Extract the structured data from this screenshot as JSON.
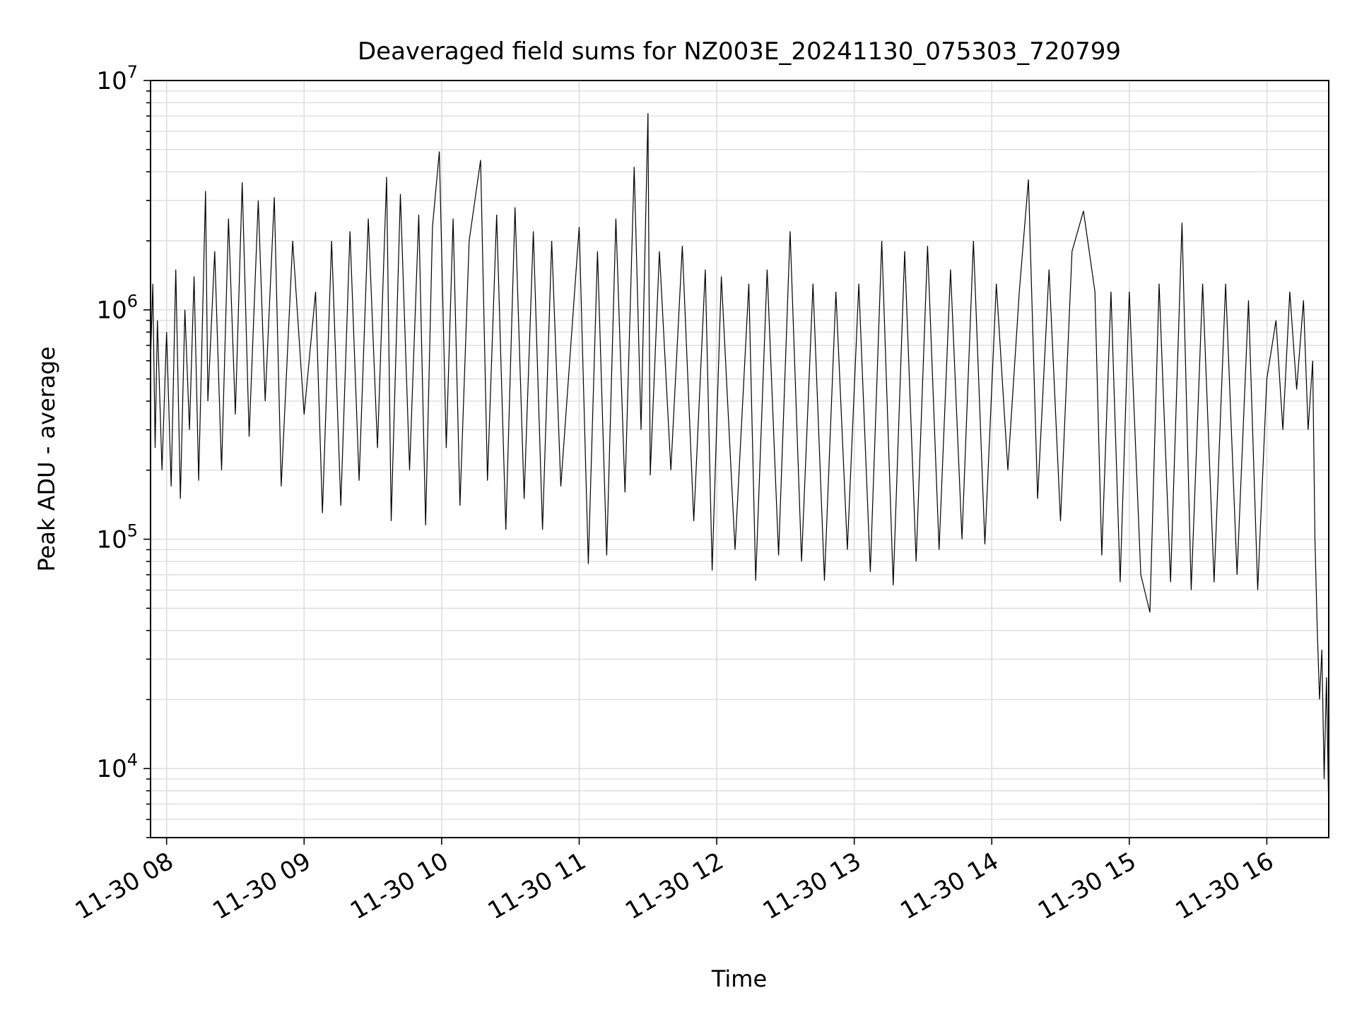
{
  "chart_data": {
    "type": "line",
    "title": "Deaveraged field sums for NZ003E_20241130_075303_720799",
    "xlabel": "Time",
    "ylabel": "Peak ADU - average",
    "y_scale": "log",
    "ylim": [
      5000,
      10000000
    ],
    "xlim": [
      "2024-11-30 07:53",
      "2024-11-30 16:27"
    ],
    "grid": true,
    "legend": "none",
    "line_color": "#000000",
    "x_ticks": [
      {
        "t": "2024-11-30 08:00",
        "label": "11-30 08"
      },
      {
        "t": "2024-11-30 09:00",
        "label": "11-30 09"
      },
      {
        "t": "2024-11-30 10:00",
        "label": "11-30 10"
      },
      {
        "t": "2024-11-30 11:00",
        "label": "11-30 11"
      },
      {
        "t": "2024-11-30 12:00",
        "label": "11-30 12"
      },
      {
        "t": "2024-11-30 13:00",
        "label": "11-30 13"
      },
      {
        "t": "2024-11-30 14:00",
        "label": "11-30 14"
      },
      {
        "t": "2024-11-30 15:00",
        "label": "11-30 15"
      },
      {
        "t": "2024-11-30 16:00",
        "label": "11-30 16"
      }
    ],
    "y_ticks": [
      {
        "value": 10000,
        "base": "10",
        "exp": "4"
      },
      {
        "value": 100000,
        "base": "10",
        "exp": "5"
      },
      {
        "value": 1000000,
        "base": "10",
        "exp": "6"
      },
      {
        "value": 10000000,
        "base": "10",
        "exp": "7"
      }
    ],
    "series": [
      {
        "points": [
          [
            "2024-11-30 07:53",
            600000
          ],
          [
            "2024-11-30 07:54",
            1300000
          ],
          [
            "2024-11-30 07:55",
            250000
          ],
          [
            "2024-11-30 07:56",
            900000
          ],
          [
            "2024-11-30 07:58",
            200000
          ],
          [
            "2024-11-30 08:00",
            800000
          ],
          [
            "2024-11-30 08:02",
            170000
          ],
          [
            "2024-11-30 08:04",
            1500000
          ],
          [
            "2024-11-30 08:06",
            150000
          ],
          [
            "2024-11-30 08:08",
            1000000
          ],
          [
            "2024-11-30 08:10",
            300000
          ],
          [
            "2024-11-30 08:12",
            1400000
          ],
          [
            "2024-11-30 08:14",
            180000
          ],
          [
            "2024-11-30 08:17",
            3300000
          ],
          [
            "2024-11-30 08:18",
            400000
          ],
          [
            "2024-11-30 08:21",
            1800000
          ],
          [
            "2024-11-30 08:24",
            200000
          ],
          [
            "2024-11-30 08:27",
            2500000
          ],
          [
            "2024-11-30 08:30",
            350000
          ],
          [
            "2024-11-30 08:33",
            3600000
          ],
          [
            "2024-11-30 08:36",
            280000
          ],
          [
            "2024-11-30 08:40",
            3000000
          ],
          [
            "2024-11-30 08:43",
            400000
          ],
          [
            "2024-11-30 08:47",
            3100000
          ],
          [
            "2024-11-30 08:50",
            170000
          ],
          [
            "2024-11-30 08:55",
            2000000
          ],
          [
            "2024-11-30 09:00",
            350000
          ],
          [
            "2024-11-30 09:05",
            1200000
          ],
          [
            "2024-11-30 09:08",
            130000
          ],
          [
            "2024-11-30 09:12",
            2000000
          ],
          [
            "2024-11-30 09:16",
            140000
          ],
          [
            "2024-11-30 09:20",
            2200000
          ],
          [
            "2024-11-30 09:24",
            180000
          ],
          [
            "2024-11-30 09:28",
            2500000
          ],
          [
            "2024-11-30 09:32",
            250000
          ],
          [
            "2024-11-30 09:36",
            3800000
          ],
          [
            "2024-11-30 09:38",
            120000
          ],
          [
            "2024-11-30 09:42",
            3200000
          ],
          [
            "2024-11-30 09:46",
            200000
          ],
          [
            "2024-11-30 09:50",
            2600000
          ],
          [
            "2024-11-30 09:53",
            115000
          ],
          [
            "2024-11-30 09:56",
            2300000
          ],
          [
            "2024-11-30 09:59",
            4900000
          ],
          [
            "2024-11-30 10:02",
            250000
          ],
          [
            "2024-11-30 10:05",
            2500000
          ],
          [
            "2024-11-30 10:08",
            140000
          ],
          [
            "2024-11-30 10:12",
            2000000
          ],
          [
            "2024-11-30 10:17",
            4500000
          ],
          [
            "2024-11-30 10:20",
            180000
          ],
          [
            "2024-11-30 10:24",
            2600000
          ],
          [
            "2024-11-30 10:28",
            110000
          ],
          [
            "2024-11-30 10:32",
            2800000
          ],
          [
            "2024-11-30 10:36",
            150000
          ],
          [
            "2024-11-30 10:40",
            2200000
          ],
          [
            "2024-11-30 10:44",
            110000
          ],
          [
            "2024-11-30 10:48",
            2000000
          ],
          [
            "2024-11-30 10:52",
            170000
          ],
          [
            "2024-11-30 11:00",
            2300000
          ],
          [
            "2024-11-30 11:04",
            78000
          ],
          [
            "2024-11-30 11:08",
            1800000
          ],
          [
            "2024-11-30 11:12",
            85000
          ],
          [
            "2024-11-30 11:16",
            2500000
          ],
          [
            "2024-11-30 11:20",
            160000
          ],
          [
            "2024-11-30 11:24",
            4200000
          ],
          [
            "2024-11-30 11:27",
            300000
          ],
          [
            "2024-11-30 11:30",
            7200000
          ],
          [
            "2024-11-30 11:31",
            190000
          ],
          [
            "2024-11-30 11:35",
            1800000
          ],
          [
            "2024-11-30 11:40",
            200000
          ],
          [
            "2024-11-30 11:45",
            1900000
          ],
          [
            "2024-11-30 11:50",
            120000
          ],
          [
            "2024-11-30 11:55",
            1500000
          ],
          [
            "2024-11-30 11:58",
            73000
          ],
          [
            "2024-11-30 12:02",
            1400000
          ],
          [
            "2024-11-30 12:08",
            90000
          ],
          [
            "2024-11-30 12:14",
            1300000
          ],
          [
            "2024-11-30 12:17",
            66000
          ],
          [
            "2024-11-30 12:22",
            1500000
          ],
          [
            "2024-11-30 12:27",
            85000
          ],
          [
            "2024-11-30 12:32",
            2200000
          ],
          [
            "2024-11-30 12:37",
            80000
          ],
          [
            "2024-11-30 12:42",
            1300000
          ],
          [
            "2024-11-30 12:47",
            66000
          ],
          [
            "2024-11-30 12:52",
            1200000
          ],
          [
            "2024-11-30 12:57",
            90000
          ],
          [
            "2024-11-30 13:02",
            1300000
          ],
          [
            "2024-11-30 13:07",
            72000
          ],
          [
            "2024-11-30 13:12",
            2000000
          ],
          [
            "2024-11-30 13:17",
            63000
          ],
          [
            "2024-11-30 13:22",
            1800000
          ],
          [
            "2024-11-30 13:27",
            80000
          ],
          [
            "2024-11-30 13:32",
            1900000
          ],
          [
            "2024-11-30 13:37",
            90000
          ],
          [
            "2024-11-30 13:42",
            1500000
          ],
          [
            "2024-11-30 13:47",
            100000
          ],
          [
            "2024-11-30 13:52",
            2000000
          ],
          [
            "2024-11-30 13:57",
            95000
          ],
          [
            "2024-11-30 14:02",
            1300000
          ],
          [
            "2024-11-30 14:07",
            200000
          ],
          [
            "2024-11-30 14:12",
            1200000
          ],
          [
            "2024-11-30 14:16",
            3700000
          ],
          [
            "2024-11-30 14:20",
            150000
          ],
          [
            "2024-11-30 14:25",
            1500000
          ],
          [
            "2024-11-30 14:30",
            120000
          ],
          [
            "2024-11-30 14:35",
            1800000
          ],
          [
            "2024-11-30 14:40",
            2700000
          ],
          [
            "2024-11-30 14:45",
            1200000
          ],
          [
            "2024-11-30 14:48",
            85000
          ],
          [
            "2024-11-30 14:52",
            1200000
          ],
          [
            "2024-11-30 14:56",
            65000
          ],
          [
            "2024-11-30 15:00",
            1200000
          ],
          [
            "2024-11-30 15:05",
            70000
          ],
          [
            "2024-11-30 15:09",
            48000
          ],
          [
            "2024-11-30 15:13",
            1300000
          ],
          [
            "2024-11-30 15:18",
            65000
          ],
          [
            "2024-11-30 15:23",
            2400000
          ],
          [
            "2024-11-30 15:27",
            60000
          ],
          [
            "2024-11-30 15:32",
            1300000
          ],
          [
            "2024-11-30 15:37",
            65000
          ],
          [
            "2024-11-30 15:42",
            1300000
          ],
          [
            "2024-11-30 15:47",
            70000
          ],
          [
            "2024-11-30 15:52",
            1100000
          ],
          [
            "2024-11-30 15:56",
            60000
          ],
          [
            "2024-11-30 16:00",
            500000
          ],
          [
            "2024-11-30 16:04",
            900000
          ],
          [
            "2024-11-30 16:07",
            300000
          ],
          [
            "2024-11-30 16:10",
            1200000
          ],
          [
            "2024-11-30 16:13",
            450000
          ],
          [
            "2024-11-30 16:16",
            1100000
          ],
          [
            "2024-11-30 16:18",
            300000
          ],
          [
            "2024-11-30 16:20",
            600000
          ],
          [
            "2024-11-30 16:21",
            100000
          ],
          [
            "2024-11-30 16:22",
            40000
          ],
          [
            "2024-11-30 16:23",
            20000
          ],
          [
            "2024-11-30 16:24",
            33000
          ],
          [
            "2024-11-30 16:25",
            9000
          ],
          [
            "2024-11-30 16:26",
            25000
          ],
          [
            "2024-11-30 16:27",
            6500
          ]
        ]
      }
    ]
  }
}
